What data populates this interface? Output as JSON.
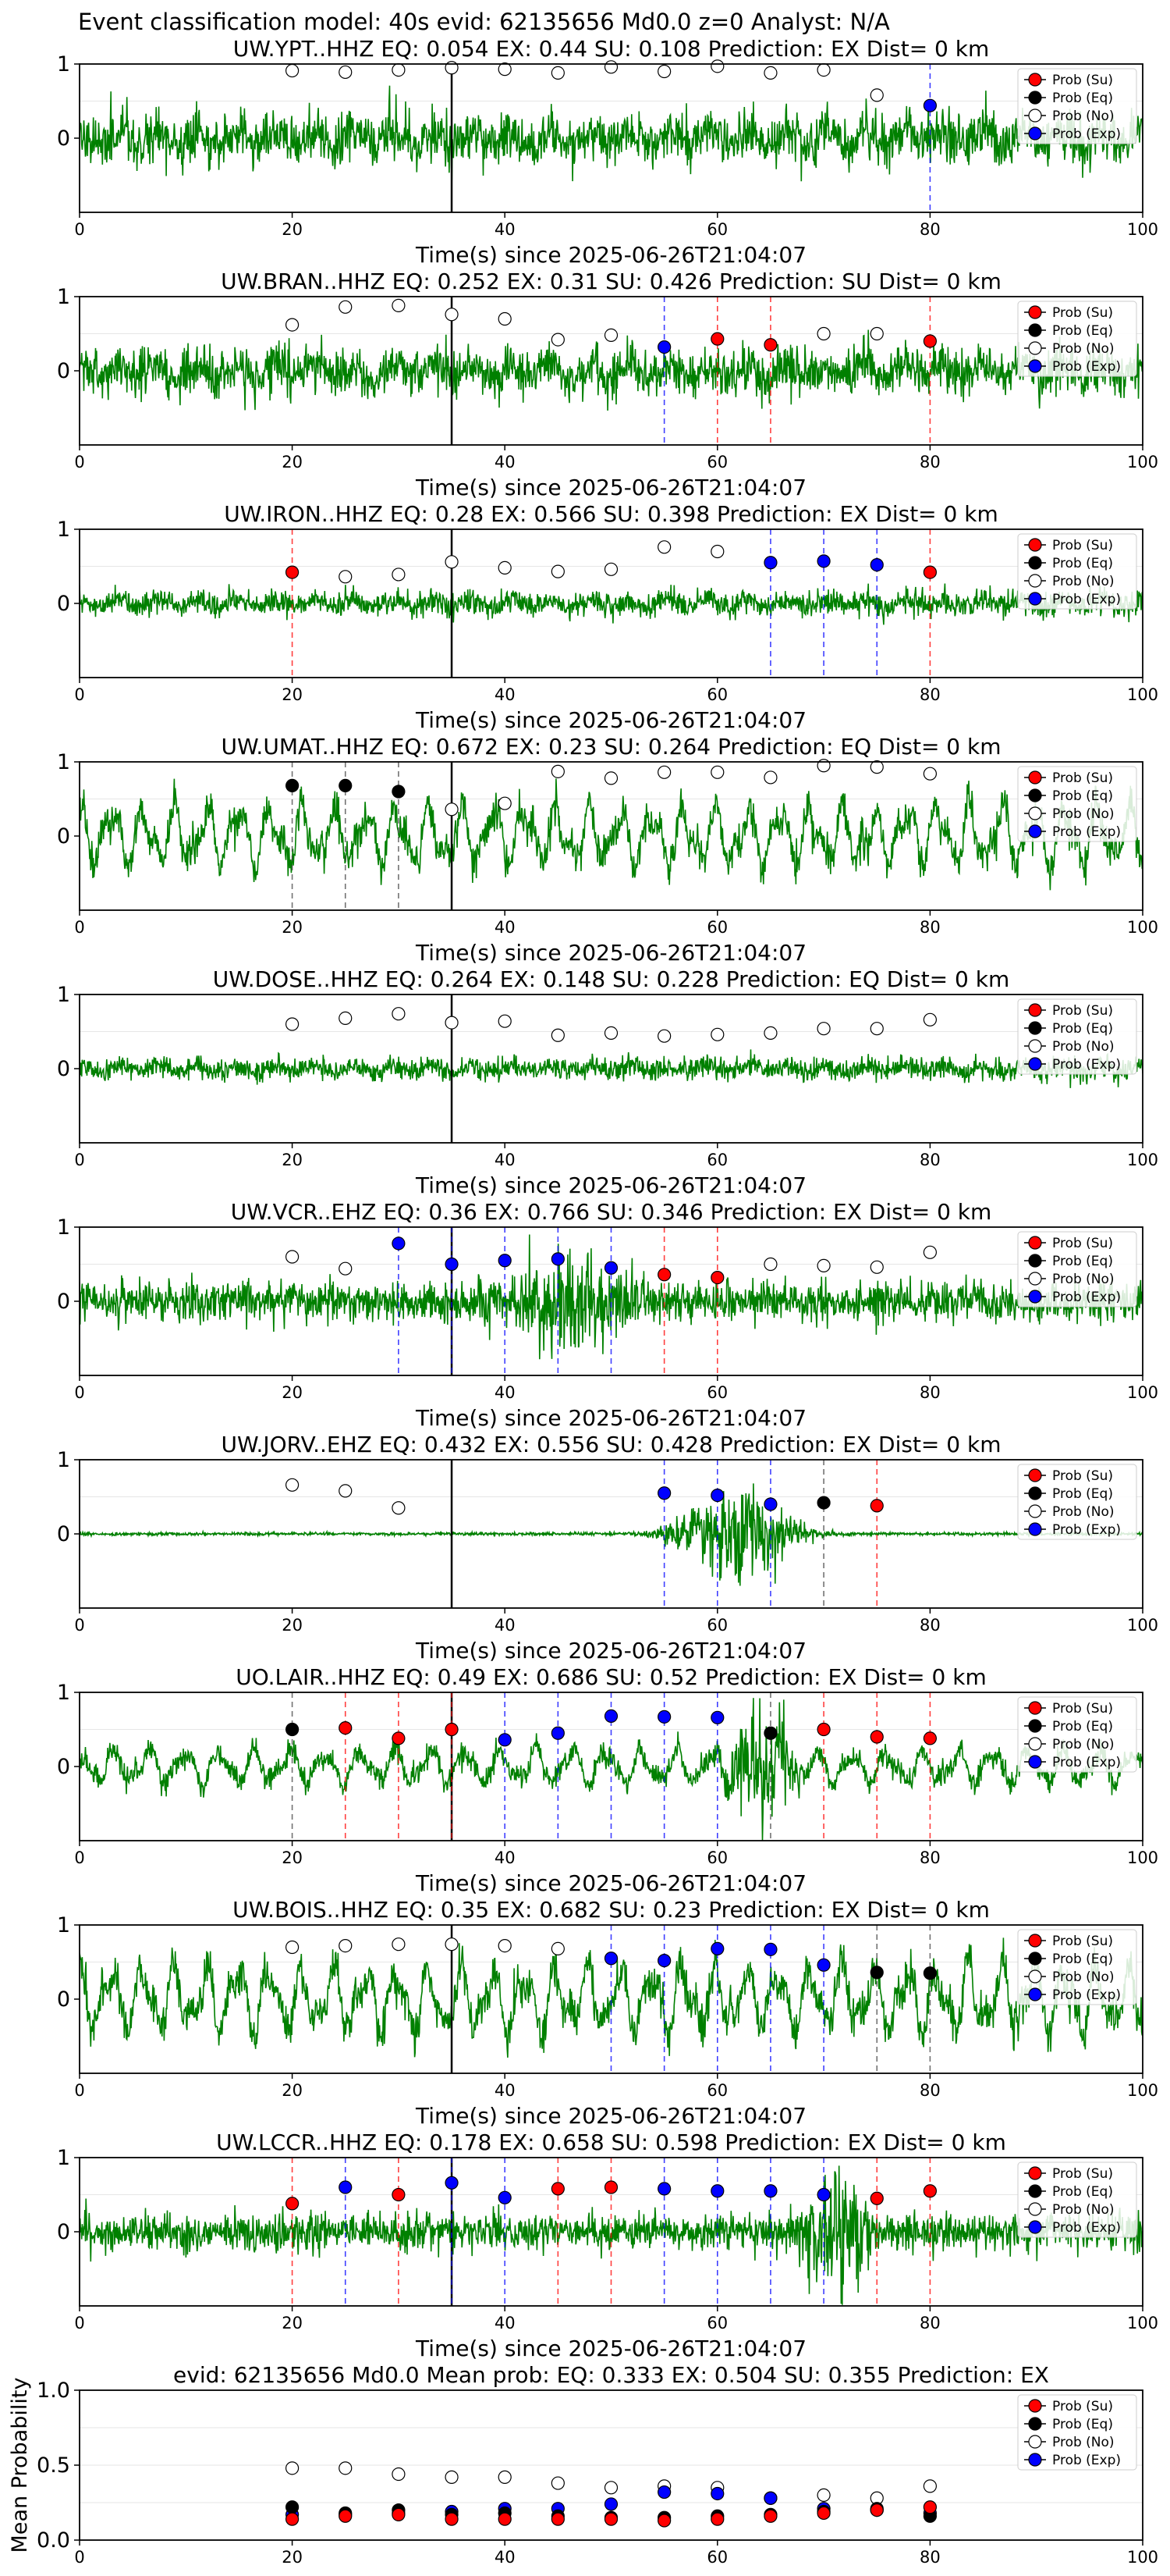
{
  "figure_title": "Event classification model: 40s evid: 62135656 Md0.0 z=0 Analyst: N/A",
  "colors": {
    "waveform": "#008000",
    "su": "#ff0000",
    "eq": "#000000",
    "no": "#ffffff",
    "exp": "#0000ff",
    "axis": "#000000",
    "grid": "#e6e6e6",
    "onset_line": "#000000"
  },
  "legend": [
    "Prob (Su)",
    "Prob (Eq)",
    "Prob (No)",
    "Prob (Exp)"
  ],
  "chart_data": [
    {
      "type": "line",
      "title": "UW.YPT..HHZ   EQ: 0.054  EX: 0.44  SU: 0.108   Prediction: EX    Dist= 0 km",
      "xlabel": "Time(s) since 2025-06-26T21:04:07",
      "xlim": [
        0,
        100
      ],
      "ylim": [
        -1,
        1
      ],
      "xticks": [
        "0",
        "20",
        "40",
        "60",
        "80",
        "100"
      ],
      "yticks": [
        "0",
        "1"
      ],
      "waveform": {
        "style": "noise",
        "amp": 0.38,
        "seed": 11
      },
      "onset_x": 35,
      "points_x": [
        20,
        25,
        30,
        35,
        40,
        45,
        50,
        55,
        60,
        65,
        70,
        75,
        80
      ],
      "points_y": [
        0.91,
        0.89,
        0.92,
        0.95,
        0.93,
        0.88,
        0.96,
        0.9,
        0.97,
        0.88,
        0.92,
        0.58,
        0.44
      ],
      "points_class": [
        "No",
        "No",
        "No",
        "No",
        "No",
        "No",
        "No",
        "No",
        "No",
        "No",
        "No",
        "No",
        "Exp"
      ]
    },
    {
      "type": "line",
      "title": "UW.BRAN..HHZ   EQ: 0.252  EX: 0.31  SU: 0.426   Prediction: SU    Dist= 0 km",
      "xlabel": "Time(s) since 2025-06-26T21:04:07",
      "xlim": [
        0,
        100
      ],
      "ylim": [
        -1,
        1
      ],
      "xticks": [
        "0",
        "20",
        "40",
        "60",
        "80",
        "100"
      ],
      "yticks": [
        "0",
        "1"
      ],
      "waveform": {
        "style": "noise",
        "amp": 0.34,
        "seed": 23
      },
      "onset_x": 35,
      "points_x": [
        20,
        25,
        30,
        35,
        40,
        45,
        50,
        55,
        60,
        65,
        70,
        75,
        80
      ],
      "points_y": [
        0.62,
        0.86,
        0.88,
        0.76,
        0.7,
        0.42,
        0.48,
        0.32,
        0.43,
        0.35,
        0.5,
        0.5,
        0.4
      ],
      "points_class": [
        "No",
        "No",
        "No",
        "No",
        "No",
        "No",
        "No",
        "Exp",
        "Su",
        "Su",
        "No",
        "No",
        "Su"
      ]
    },
    {
      "type": "line",
      "title": "UW.IRON..HHZ   EQ: 0.28  EX: 0.566  SU: 0.398   Prediction: EX    Dist= 0 km",
      "xlabel": "Time(s) since 2025-06-26T21:04:07",
      "xlim": [
        0,
        100
      ],
      "ylim": [
        -1,
        1
      ],
      "xticks": [
        "0",
        "20",
        "40",
        "60",
        "80",
        "100"
      ],
      "yticks": [
        "0",
        "1"
      ],
      "waveform": {
        "style": "noise",
        "amp": 0.18,
        "seed": 37
      },
      "onset_x": 35,
      "points_x": [
        20,
        25,
        30,
        35,
        40,
        45,
        50,
        55,
        60,
        65,
        70,
        75,
        80
      ],
      "points_y": [
        0.42,
        0.36,
        0.39,
        0.56,
        0.48,
        0.43,
        0.46,
        0.76,
        0.7,
        0.55,
        0.57,
        0.52,
        0.42
      ],
      "points_class": [
        "Su",
        "No",
        "No",
        "No",
        "No",
        "No",
        "No",
        "No",
        "No",
        "Exp",
        "Exp",
        "Exp",
        "Su"
      ]
    },
    {
      "type": "line",
      "title": "UW.UMAT..HHZ   EQ: 0.672  EX: 0.23  SU: 0.264   Prediction: EQ    Dist= 0 km",
      "xlabel": "Time(s) since 2025-06-26T21:04:07",
      "xlim": [
        0,
        100
      ],
      "ylim": [
        -1,
        1
      ],
      "xticks": [
        "0",
        "20",
        "40",
        "60",
        "80",
        "100"
      ],
      "yticks": [
        "0",
        "1"
      ],
      "waveform": {
        "style": "wave",
        "amp": 0.55,
        "seed": 41
      },
      "onset_x": 35,
      "points_x": [
        20,
        25,
        30,
        35,
        40,
        45,
        50,
        55,
        60,
        65,
        70,
        75,
        80
      ],
      "points_y": [
        0.68,
        0.68,
        0.6,
        0.36,
        0.44,
        0.87,
        0.78,
        0.86,
        0.86,
        0.79,
        0.95,
        0.93,
        0.84
      ],
      "points_class": [
        "Eq",
        "Eq",
        "Eq",
        "No",
        "No",
        "No",
        "No",
        "No",
        "No",
        "No",
        "No",
        "No",
        "No"
      ]
    },
    {
      "type": "line",
      "title": "UW.DOSE..HHZ   EQ: 0.264  EX: 0.148  SU: 0.228   Prediction: EQ    Dist= 0 km",
      "xlabel": "Time(s) since 2025-06-26T21:04:07",
      "xlim": [
        0,
        100
      ],
      "ylim": [
        -1,
        1
      ],
      "xticks": [
        "0",
        "20",
        "40",
        "60",
        "80",
        "100"
      ],
      "yticks": [
        "0",
        "1"
      ],
      "waveform": {
        "style": "noise",
        "amp": 0.16,
        "seed": 53
      },
      "onset_x": 35,
      "points_x": [
        20,
        25,
        30,
        35,
        40,
        45,
        50,
        55,
        60,
        65,
        70,
        75,
        80
      ],
      "points_y": [
        0.6,
        0.68,
        0.74,
        0.62,
        0.64,
        0.45,
        0.48,
        0.44,
        0.46,
        0.48,
        0.54,
        0.54,
        0.66
      ],
      "points_class": [
        "No",
        "No",
        "No",
        "No",
        "No",
        "No",
        "No",
        "No",
        "No",
        "No",
        "No",
        "No",
        "No"
      ]
    },
    {
      "type": "line",
      "title": "UW.VCR..EHZ   EQ: 0.36  EX: 0.766  SU: 0.346   Prediction: EX    Dist= 0 km",
      "xlabel": "Time(s) since 2025-06-26T21:04:07",
      "xlim": [
        0,
        100
      ],
      "ylim": [
        -1,
        1
      ],
      "xticks": [
        "0",
        "20",
        "40",
        "60",
        "80",
        "100"
      ],
      "yticks": [
        "0",
        "1"
      ],
      "waveform": {
        "style": "burst",
        "amp": 0.3,
        "seed": 67,
        "burst_center": 46,
        "burst_width": 5,
        "burst_amp": 0.9
      },
      "onset_x": 35,
      "points_x": [
        20,
        25,
        30,
        35,
        40,
        45,
        50,
        55,
        60,
        65,
        70,
        75,
        80
      ],
      "points_y": [
        0.6,
        0.44,
        0.78,
        0.5,
        0.55,
        0.57,
        0.45,
        0.36,
        0.32,
        0.5,
        0.48,
        0.46,
        0.66
      ],
      "points_class": [
        "No",
        "No",
        "Exp",
        "Exp",
        "Exp",
        "Exp",
        "Exp",
        "Su",
        "Su",
        "No",
        "No",
        "No",
        "No"
      ]
    },
    {
      "type": "line",
      "title": "UW.JORV..EHZ   EQ: 0.432  EX: 0.556  SU: 0.428   Prediction: EX    Dist= 0 km",
      "xlabel": "Time(s) since 2025-06-26T21:04:07",
      "xlim": [
        0,
        100
      ],
      "ylim": [
        -1,
        1
      ],
      "xticks": [
        "0",
        "20",
        "40",
        "60",
        "80",
        "100"
      ],
      "yticks": [
        "0",
        "1"
      ],
      "waveform": {
        "style": "quiet_burst",
        "amp": 0.01,
        "seed": 71,
        "burst_center": 62,
        "burst_width": 5,
        "burst_amp": 0.95
      },
      "onset_x": 35,
      "points_x": [
        20,
        25,
        30,
        35,
        40,
        45,
        50,
        55,
        60,
        65,
        70,
        75,
        80
      ],
      "points_y": [
        0.66,
        0.58,
        0.35,
        0.0,
        0.0,
        0.0,
        0.0,
        0.55,
        0.52,
        0.4,
        0.42,
        0.38,
        0.0
      ],
      "points_class": [
        "No",
        "No",
        "No",
        "",
        "",
        "",
        "",
        "Exp",
        "Exp",
        "Exp",
        "Eq",
        "Su",
        ""
      ]
    },
    {
      "type": "line",
      "title": "UO.LAIR..HHZ   EQ: 0.49  EX: 0.686  SU: 0.52   Prediction: EX    Dist= 0 km",
      "xlabel": "Time(s) since 2025-06-26T21:04:07",
      "xlim": [
        0,
        100
      ],
      "ylim": [
        -1,
        1
      ],
      "xticks": [
        "0",
        "20",
        "40",
        "60",
        "80",
        "100"
      ],
      "yticks": [
        "0",
        "1"
      ],
      "waveform": {
        "style": "wave_burst",
        "amp": 0.3,
        "seed": 83,
        "burst_center": 64,
        "burst_width": 3,
        "burst_amp": 0.9
      },
      "onset_x": 35,
      "points_x": [
        20,
        25,
        30,
        35,
        40,
        45,
        50,
        55,
        60,
        65,
        70,
        75,
        80
      ],
      "points_y": [
        0.5,
        0.52,
        0.38,
        0.5,
        0.36,
        0.45,
        0.68,
        0.67,
        0.66,
        0.45,
        0.5,
        0.4,
        0.38
      ],
      "points_class": [
        "Eq",
        "Su",
        "Su",
        "Su",
        "Exp",
        "Exp",
        "Exp",
        "Exp",
        "Exp",
        "Eq",
        "Su",
        "Su",
        "Su"
      ]
    },
    {
      "type": "line",
      "title": "UW.BOIS..HHZ   EQ: 0.35  EX: 0.682  SU: 0.23   Prediction: EX    Dist= 0 km",
      "xlabel": "Time(s) since 2025-06-26T21:04:07",
      "xlim": [
        0,
        100
      ],
      "ylim": [
        -1,
        1
      ],
      "xticks": [
        "0",
        "20",
        "40",
        "60",
        "80",
        "100"
      ],
      "yticks": [
        "0",
        "1"
      ],
      "waveform": {
        "style": "wave",
        "amp": 0.6,
        "seed": 97
      },
      "onset_x": 35,
      "points_x": [
        20,
        25,
        30,
        35,
        40,
        45,
        50,
        55,
        60,
        65,
        70,
        75,
        80
      ],
      "points_y": [
        0.7,
        0.72,
        0.74,
        0.74,
        0.72,
        0.68,
        0.55,
        0.52,
        0.68,
        0.67,
        0.46,
        0.36,
        0.35
      ],
      "points_class": [
        "No",
        "No",
        "No",
        "No",
        "No",
        "No",
        "Exp",
        "Exp",
        "Exp",
        "Exp",
        "Exp",
        "Eq",
        "Eq"
      ]
    },
    {
      "type": "line",
      "title": "UW.LCCR..HHZ   EQ: 0.178  EX: 0.658  SU: 0.598   Prediction: EX    Dist= 0 km",
      "xlabel": "Time(s) since 2025-06-26T21:04:07",
      "xlim": [
        0,
        100
      ],
      "ylim": [
        -1,
        1
      ],
      "xticks": [
        "0",
        "20",
        "40",
        "60",
        "80",
        "100"
      ],
      "yticks": [
        "0",
        "1"
      ],
      "waveform": {
        "style": "burst",
        "amp": 0.28,
        "seed": 101,
        "burst_center": 71,
        "burst_width": 3,
        "burst_amp": 0.95
      },
      "onset_x": 35,
      "points_x": [
        20,
        25,
        30,
        35,
        40,
        45,
        50,
        55,
        60,
        65,
        70,
        75,
        80
      ],
      "points_y": [
        0.38,
        0.6,
        0.5,
        0.66,
        0.46,
        0.58,
        0.6,
        0.58,
        0.55,
        0.55,
        0.5,
        0.45,
        0.55
      ],
      "points_class": [
        "Su",
        "Exp",
        "Su",
        "Exp",
        "Exp",
        "Su",
        "Su",
        "Exp",
        "Exp",
        "Exp",
        "Exp",
        "Su",
        "Su"
      ]
    },
    {
      "type": "scatter",
      "title": "evid: 62135656  Md0.0   Mean prob:    EQ: 0.333  EX: 0.504  SU: 0.355   Prediction: EX",
      "xlabel": "",
      "ylabel": "Mean Probability",
      "xlim": [
        0,
        100
      ],
      "ylim": [
        0,
        1
      ],
      "xticks": [
        "0",
        "20",
        "40",
        "60",
        "80",
        "100"
      ],
      "yticks": [
        "0.0",
        "0.5",
        "1.0"
      ],
      "x": [
        20,
        25,
        30,
        35,
        40,
        45,
        50,
        55,
        60,
        65,
        70,
        75,
        80
      ],
      "series": [
        {
          "name": "Prob (No)",
          "values": [
            0.48,
            0.48,
            0.44,
            0.42,
            0.42,
            0.38,
            0.35,
            0.36,
            0.35,
            0.28,
            0.3,
            0.28,
            0.36
          ]
        },
        {
          "name": "Prob (Exp)",
          "values": [
            0.17,
            0.17,
            0.18,
            0.19,
            0.21,
            0.21,
            0.24,
            0.32,
            0.31,
            0.28,
            0.21,
            0.2,
            0.18
          ]
        },
        {
          "name": "Prob (Eq)",
          "values": [
            0.22,
            0.18,
            0.2,
            0.17,
            0.18,
            0.16,
            0.15,
            0.15,
            0.16,
            0.17,
            0.19,
            0.21,
            0.16
          ]
        },
        {
          "name": "Prob (Su)",
          "values": [
            0.14,
            0.16,
            0.17,
            0.14,
            0.14,
            0.14,
            0.14,
            0.13,
            0.14,
            0.16,
            0.18,
            0.2,
            0.22
          ]
        }
      ]
    }
  ]
}
